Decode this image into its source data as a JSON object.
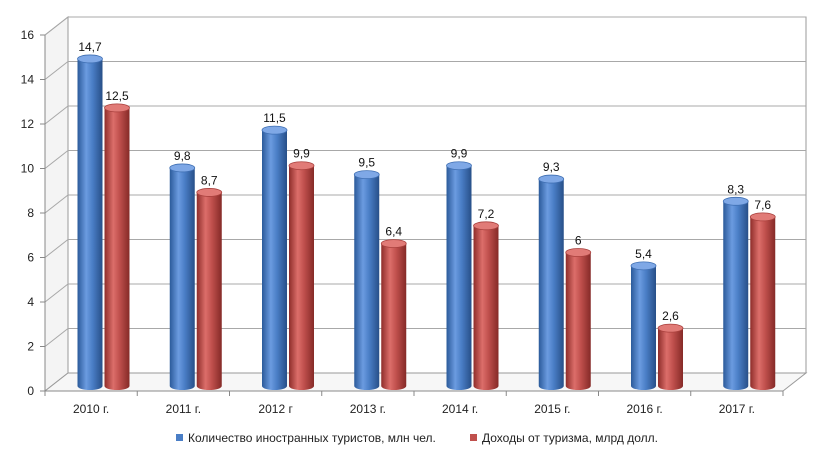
{
  "chart_data": {
    "type": "bar",
    "categories": [
      "2010 г.",
      "2011 г.",
      "2012 г",
      "2013 г.",
      "2014 г.",
      "2015 г.",
      "2016 г.",
      "2017 г."
    ],
    "series": [
      {
        "name": "Количество иностранных туристов, млн чел.",
        "values": [
          14.7,
          9.8,
          11.5,
          9.5,
          9.9,
          9.3,
          5.4,
          8.3
        ],
        "labels": [
          "14,7",
          "9,8",
          "11,5",
          "9,5",
          "9,9",
          "9,3",
          "5,4",
          "8,3"
        ],
        "color": "#4a7ec6"
      },
      {
        "name": "Доходы от туризма, млрд долл.",
        "values": [
          12.5,
          8.7,
          9.9,
          6.4,
          7.2,
          6,
          2.6,
          7.6
        ],
        "labels": [
          "12,5",
          "8,7",
          "9,9",
          "6,4",
          "7,2",
          "6",
          "2,6",
          "7,6"
        ],
        "color": "#c0504d"
      }
    ],
    "yticks": [
      "0",
      "2",
      "4",
      "6",
      "8",
      "10",
      "12",
      "14",
      "16"
    ],
    "ylim": [
      0,
      16
    ],
    "grid": true,
    "legend": "bottom",
    "style": "3d-cylinder"
  }
}
